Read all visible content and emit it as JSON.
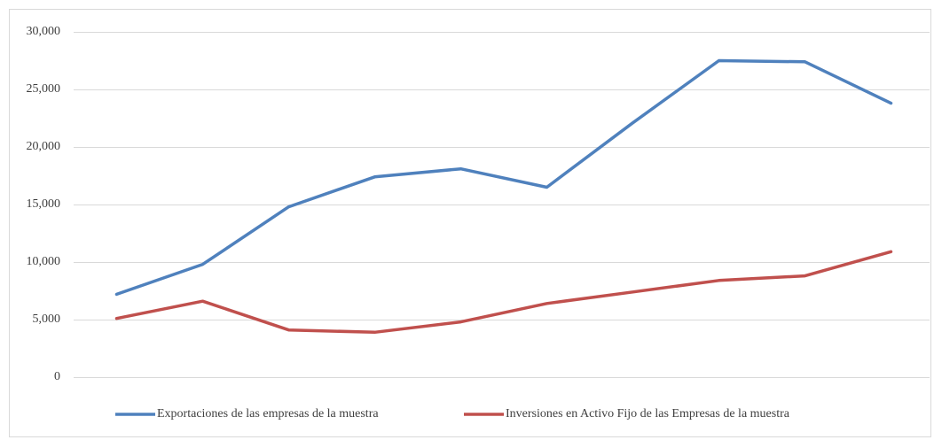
{
  "chart_data": {
    "type": "line",
    "categories": [
      null,
      null,
      null,
      null,
      null,
      null,
      null,
      null,
      null,
      null
    ],
    "series": [
      {
        "name": "Exportaciones de las empresas de la muestra",
        "color": "#4f81bd",
        "values": [
          7200,
          9800,
          14800,
          17400,
          18100,
          16500,
          22100,
          27500,
          27400,
          23800
        ]
      },
      {
        "name": "Inversiones en Activo Fijo de las Empresas de la muestra",
        "color": "#c0504d",
        "values": [
          5100,
          6600,
          4100,
          3900,
          4800,
          6400,
          7400,
          8400,
          8800,
          10900
        ]
      }
    ],
    "ylim": [
      0,
      30000
    ],
    "yticks": [
      0,
      {
        "value": 5000,
        "label": "5,000"
      },
      {
        "value": 10000,
        "label": "10,000"
      },
      {
        "value": 15000,
        "label": "15,000"
      },
      {
        "value": 20000,
        "label": "20,000"
      },
      {
        "value": 25000,
        "label": "25,000"
      },
      {
        "value": 30000,
        "label": "30,000"
      }
    ],
    "grid": true,
    "legend": "bottom"
  }
}
